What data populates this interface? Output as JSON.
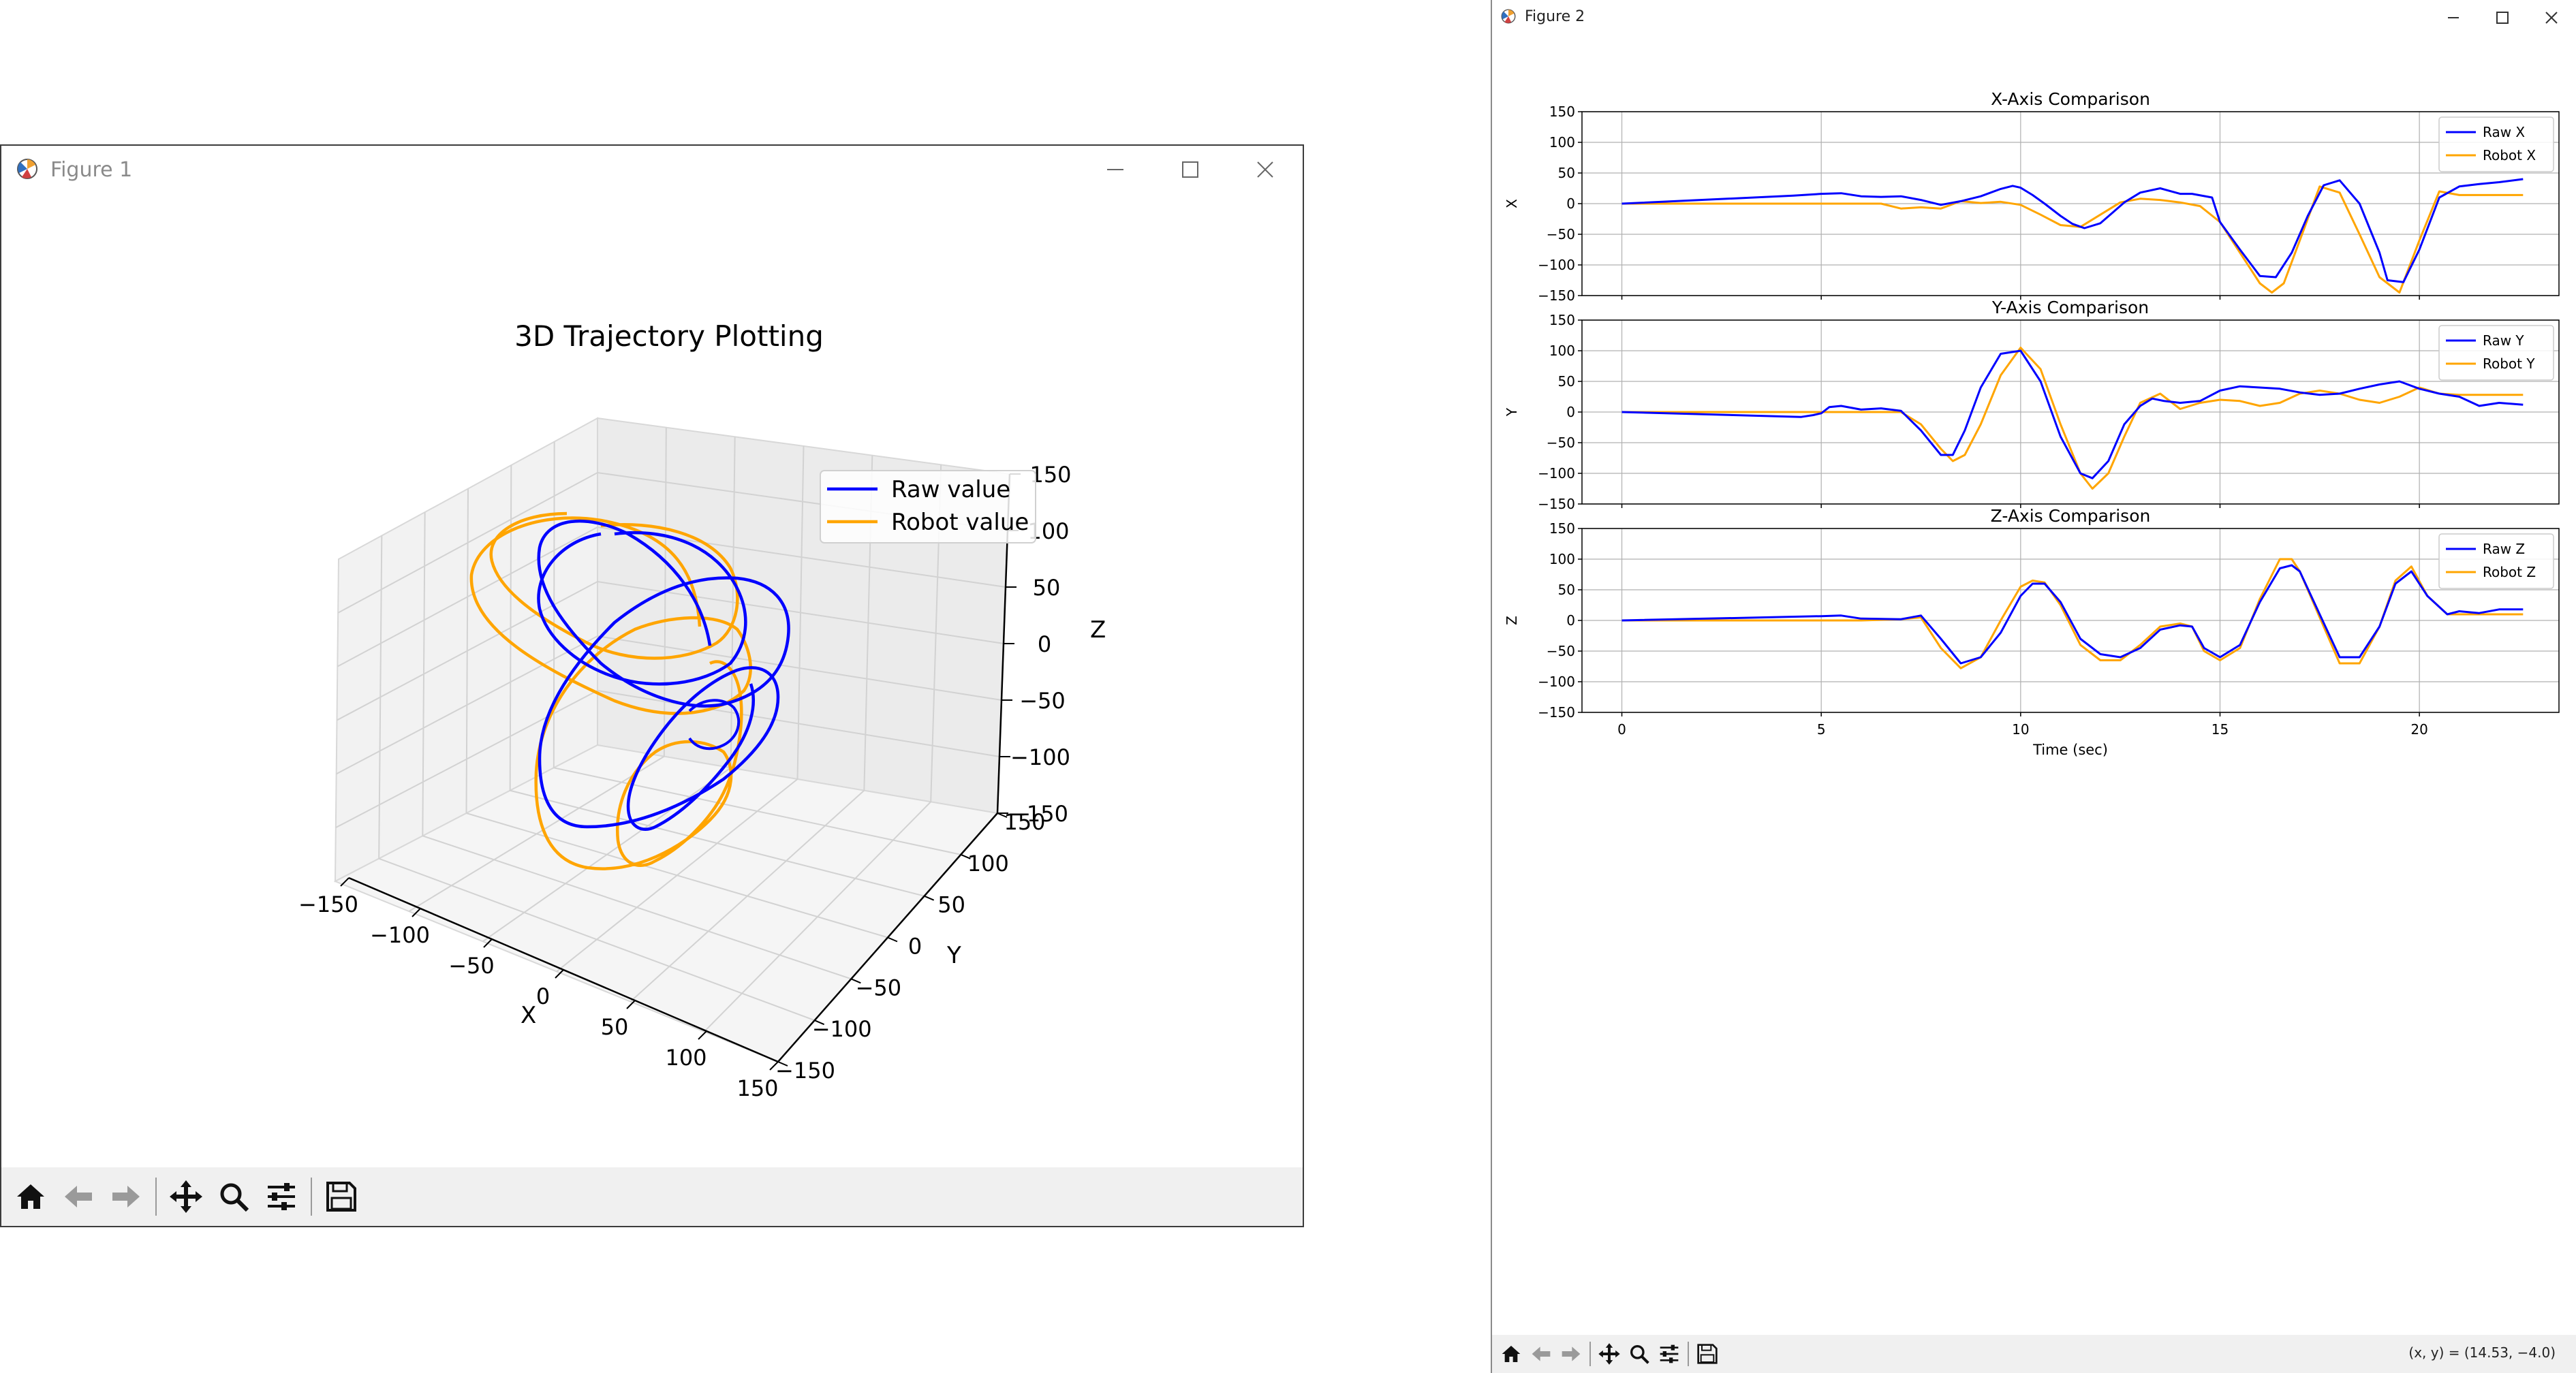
{
  "figure1": {
    "window_title": "Figure 1",
    "chart_data": {
      "type": "line",
      "title": "3D Trajectory Plotting",
      "xlabel": "X",
      "ylabel": "Y",
      "zlabel": "Z",
      "xlim": [
        -150,
        150
      ],
      "ylim": [
        -150,
        150
      ],
      "zlim": [
        -150,
        150
      ],
      "x_ticks": [
        "−150",
        "−100",
        "−50",
        "0",
        "50",
        "100",
        "150"
      ],
      "y_ticks": [
        "−150",
        "−100",
        "−50",
        "0",
        "50",
        "100",
        "150"
      ],
      "z_ticks": [
        "−150",
        "−100",
        "−50",
        "0",
        "50",
        "100",
        "150"
      ],
      "legend_position": "upper-right",
      "grid": true,
      "series": [
        {
          "name": "Raw value",
          "color": "#0000ff"
        },
        {
          "name": "Robot value",
          "color": "#ffa500"
        }
      ]
    }
  },
  "figure2": {
    "window_title": "Figure 2",
    "coord_readout": "(x, y) = (14.53, −4.0)",
    "chart_data": [
      {
        "type": "line",
        "title": "X-Axis Comparison",
        "ylabel": "X",
        "xlabel": "",
        "ylim": [
          -150,
          150
        ],
        "xlim": [
          -1,
          23.5
        ],
        "y_ticks": [
          "150",
          "100",
          "50",
          "0",
          "−50",
          "−100",
          "−150"
        ],
        "legend_position": "upper-right",
        "grid": true,
        "series": [
          {
            "name": "Raw X",
            "color": "#0000ff",
            "x": [
              0,
              4.3,
              5,
              5.5,
              6,
              6.5,
              7,
              7.5,
              8,
              8.5,
              9,
              9.5,
              9.8,
              10,
              10.3,
              10.6,
              11,
              11.3,
              11.6,
              12,
              12.3,
              12.6,
              13,
              13.5,
              14,
              14.3,
              14.8,
              15,
              15.5,
              16,
              16.4,
              16.8,
              17.2,
              17.6,
              18,
              18.5,
              19,
              19.2,
              19.6,
              20,
              20.5,
              21,
              21.5,
              22,
              22.6
            ],
            "y": [
              0,
              13,
              16,
              17,
              12,
              11,
              12,
              6,
              -2,
              4,
              12,
              24,
              29,
              26,
              14,
              0,
              -20,
              -33,
              -40,
              -32,
              -15,
              2,
              18,
              25,
              16,
              16,
              10,
              -30,
              -75,
              -118,
              -120,
              -80,
              -20,
              30,
              38,
              0,
              -80,
              -125,
              -128,
              -75,
              10,
              28,
              32,
              35,
              40
            ]
          },
          {
            "name": "Robot X",
            "color": "#ffa500",
            "x": [
              0,
              5,
              6,
              6.5,
              7,
              7.5,
              8,
              8.5,
              9,
              9.5,
              10,
              10.5,
              11,
              11.5,
              12,
              12.5,
              13,
              13.5,
              14,
              14.5,
              15,
              15.5,
              16,
              16.3,
              16.6,
              17,
              17.5,
              18,
              18.5,
              19,
              19.5,
              20,
              20.5,
              21,
              22,
              22.6
            ],
            "y": [
              0,
              0,
              0,
              0,
              -8,
              -6,
              -8,
              4,
              1,
              3,
              -2,
              -18,
              -35,
              -38,
              -18,
              2,
              8,
              6,
              2,
              -4,
              -30,
              -80,
              -130,
              -145,
              -130,
              -60,
              28,
              18,
              -50,
              -120,
              -145,
              -60,
              20,
              14,
              14,
              14
            ]
          }
        ]
      },
      {
        "type": "line",
        "title": "Y-Axis Comparison",
        "ylabel": "Y",
        "xlabel": "",
        "ylim": [
          -150,
          150
        ],
        "xlim": [
          -1,
          23.5
        ],
        "y_ticks": [
          "150",
          "100",
          "50",
          "0",
          "−50",
          "−100",
          "−150"
        ],
        "legend_position": "upper-right",
        "grid": true,
        "series": [
          {
            "name": "Raw Y",
            "color": "#0000ff",
            "x": [
              0,
              4.5,
              4.8,
              5,
              5.2,
              5.5,
              6,
              6.5,
              7,
              7.5,
              8,
              8.3,
              8.6,
              9,
              9.5,
              10,
              10.5,
              11,
              11.5,
              11.8,
              12.2,
              12.6,
              13,
              13.3,
              13.6,
              14,
              14.5,
              15,
              15.5,
              16,
              16.5,
              17,
              17.5,
              18,
              18.5,
              19,
              19.5,
              20,
              20.5,
              21,
              21.5,
              22,
              22.6
            ],
            "y": [
              0,
              -8,
              -5,
              -2,
              8,
              10,
              4,
              6,
              2,
              -30,
              -70,
              -70,
              -30,
              40,
              95,
              100,
              50,
              -40,
              -100,
              -108,
              -80,
              -20,
              10,
              22,
              18,
              15,
              18,
              35,
              42,
              40,
              38,
              32,
              28,
              30,
              38,
              45,
              50,
              38,
              30,
              25,
              10,
              15,
              12
            ]
          },
          {
            "name": "Robot Y",
            "color": "#ffa500",
            "x": [
              0,
              5,
              6,
              7,
              7.5,
              8,
              8.3,
              8.6,
              9,
              9.5,
              10,
              10.5,
              11,
              11.5,
              11.8,
              12.2,
              12.6,
              13,
              13.5,
              14,
              14.5,
              15,
              15.5,
              16,
              16.5,
              17,
              17.5,
              18,
              18.5,
              19,
              19.5,
              20,
              20.5,
              21,
              21.5,
              22,
              22.6
            ],
            "y": [
              0,
              0,
              0,
              0,
              -20,
              -60,
              -80,
              -70,
              -20,
              60,
              105,
              70,
              -20,
              -100,
              -125,
              -100,
              -40,
              15,
              30,
              5,
              15,
              20,
              18,
              10,
              15,
              30,
              35,
              30,
              20,
              15,
              25,
              40,
              30,
              28,
              28,
              28,
              28
            ]
          }
        ]
      },
      {
        "type": "line",
        "title": "Z-Axis Comparison",
        "ylabel": "Z",
        "xlabel": "Time (sec)",
        "ylim": [
          -150,
          150
        ],
        "xlim": [
          -1,
          23.5
        ],
        "x_ticks": [
          "0",
          "5",
          "10",
          "15",
          "20"
        ],
        "y_ticks": [
          "150",
          "100",
          "50",
          "0",
          "−50",
          "−100",
          "−150"
        ],
        "legend_position": "upper-right",
        "grid": true,
        "series": [
          {
            "name": "Raw Z",
            "color": "#0000ff",
            "x": [
              0,
              5,
              5.5,
              6,
              7,
              7.5,
              8,
              8.5,
              9,
              9.5,
              10,
              10.3,
              10.6,
              11,
              11.5,
              12,
              12.5,
              13,
              13.5,
              14,
              14.3,
              14.6,
              15,
              15.5,
              16,
              16.5,
              16.8,
              17,
              17.5,
              18,
              18.5,
              19,
              19.4,
              19.8,
              20.2,
              20.7,
              21,
              21.5,
              22,
              22.6
            ],
            "y": [
              0,
              7,
              8,
              3,
              2,
              8,
              -30,
              -70,
              -60,
              -20,
              40,
              60,
              60,
              30,
              -30,
              -55,
              -60,
              -45,
              -15,
              -8,
              -10,
              -45,
              -60,
              -40,
              30,
              85,
              90,
              80,
              10,
              -60,
              -60,
              -10,
              60,
              80,
              40,
              10,
              15,
              12,
              18,
              18
            ]
          },
          {
            "name": "Robot Z",
            "color": "#ffa500",
            "x": [
              0,
              5,
              6,
              7,
              7.5,
              8,
              8.5,
              9,
              9.5,
              10,
              10.3,
              10.6,
              11,
              11.5,
              12,
              12.5,
              13,
              13.5,
              14,
              14.3,
              14.6,
              15,
              15.5,
              16,
              16.5,
              16.8,
              17,
              17.5,
              18,
              18.5,
              19,
              19.4,
              19.8,
              20.2,
              20.7,
              21,
              22,
              22.6
            ],
            "y": [
              0,
              0,
              0,
              2,
              5,
              -45,
              -78,
              -60,
              0,
              55,
              65,
              62,
              25,
              -40,
              -65,
              -65,
              -40,
              -10,
              -5,
              -10,
              -50,
              -65,
              -45,
              35,
              100,
              100,
              80,
              5,
              -70,
              -70,
              -10,
              65,
              88,
              40,
              10,
              10,
              10,
              10
            ]
          }
        ]
      }
    ]
  }
}
